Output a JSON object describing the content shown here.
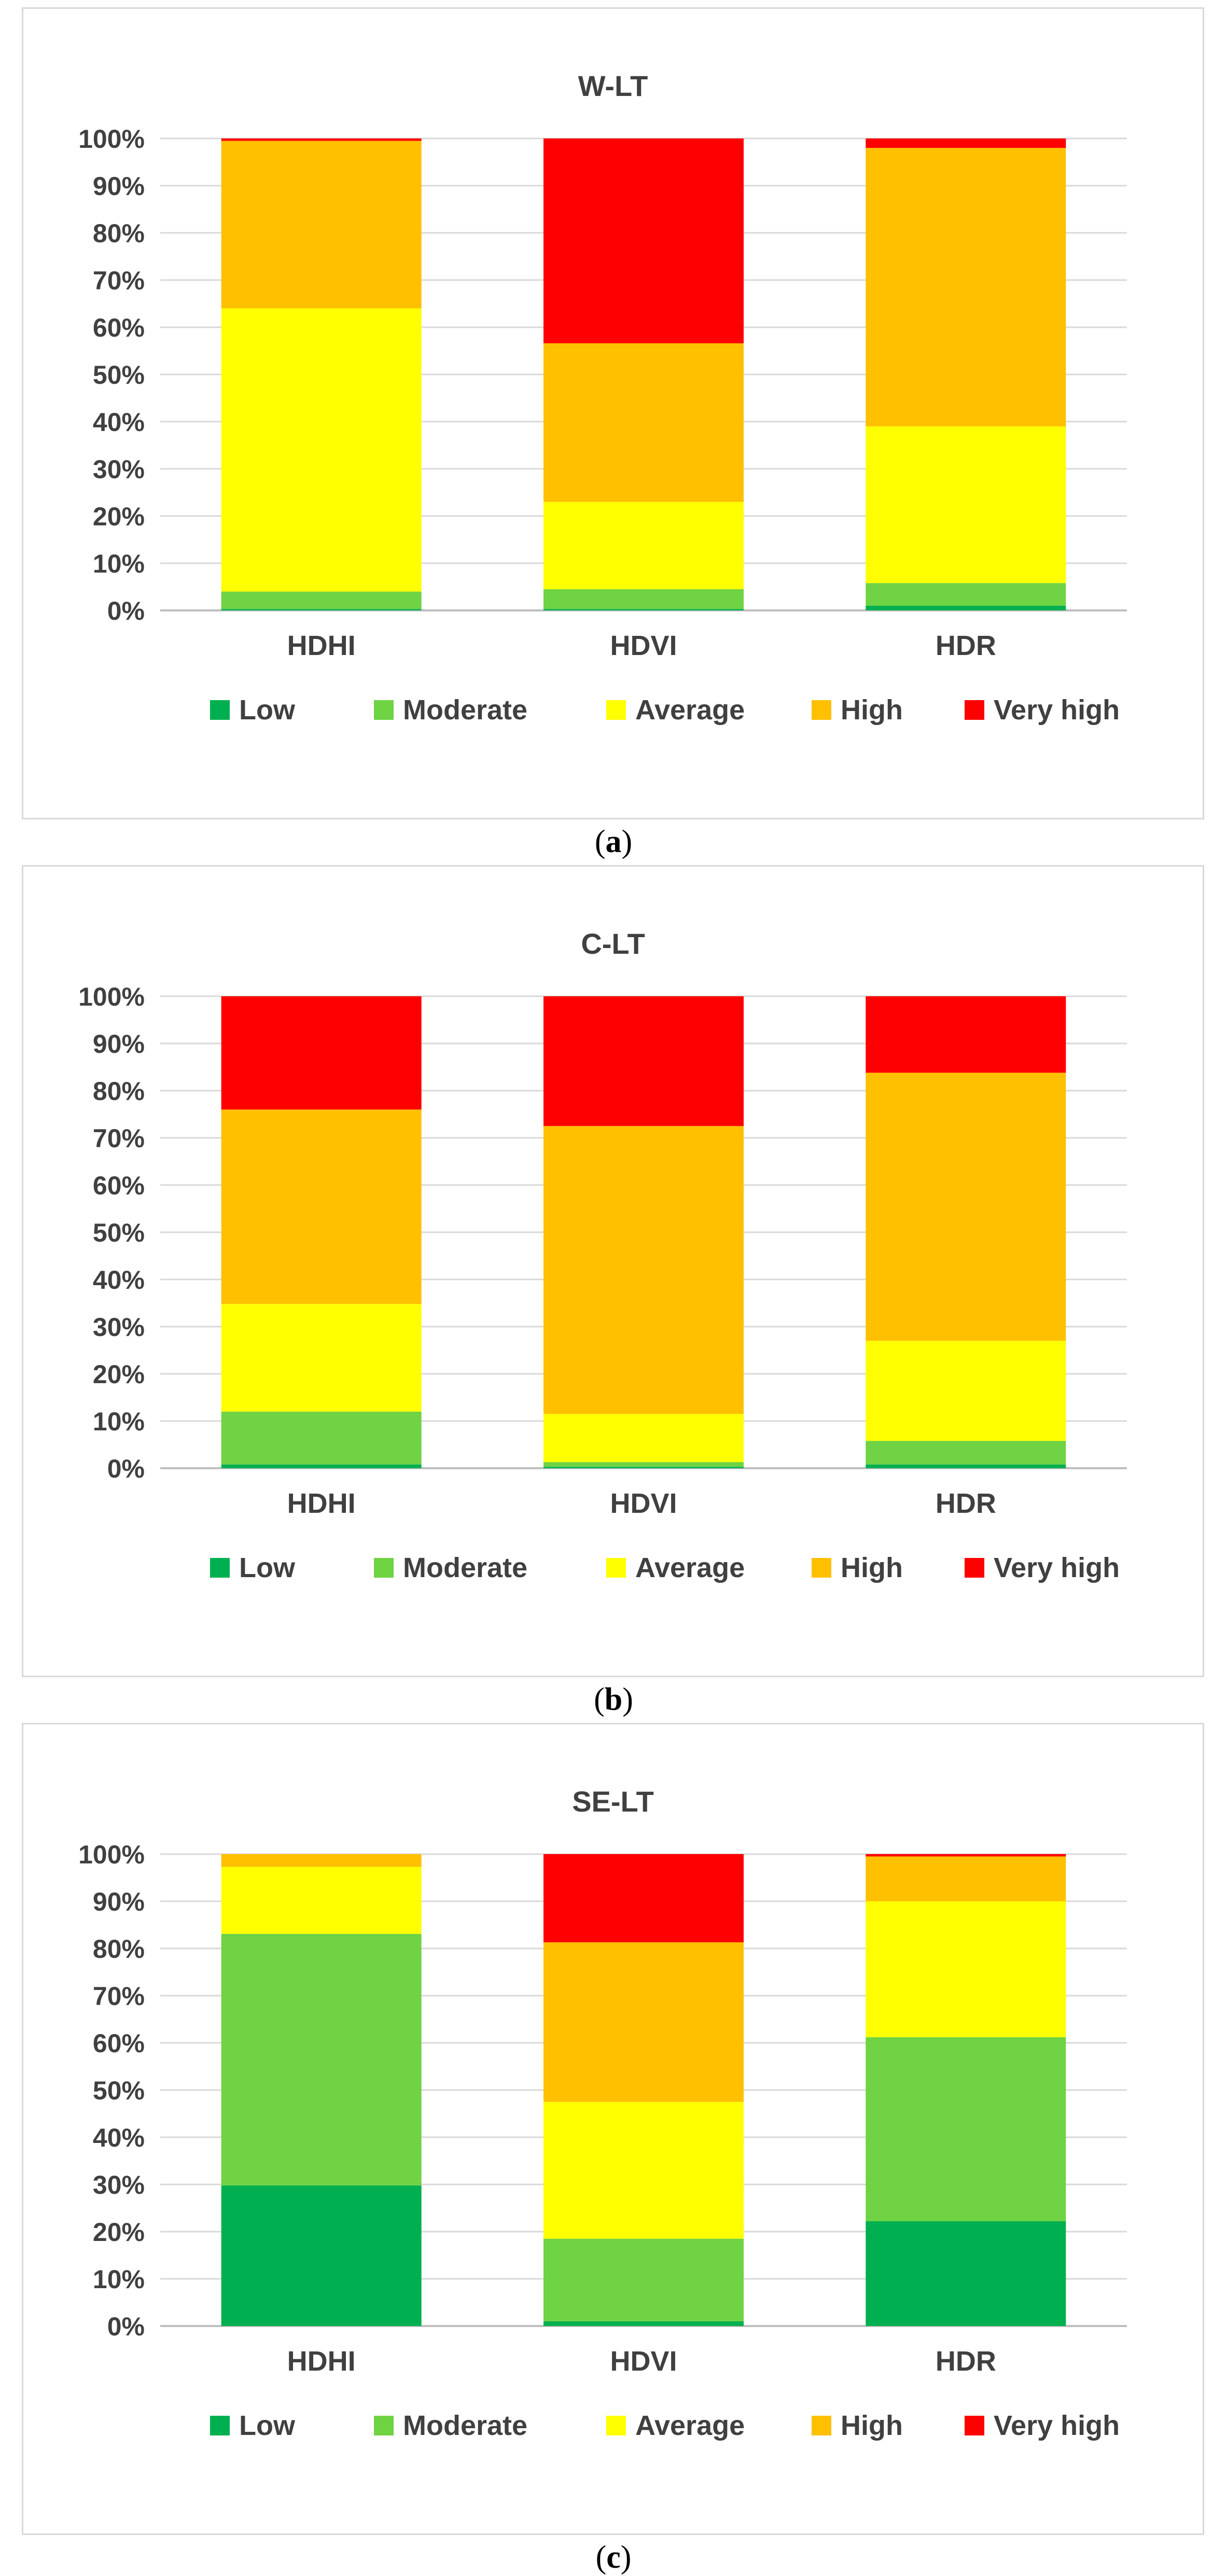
{
  "legend": [
    {
      "name": "Low",
      "color": "#00b050"
    },
    {
      "name": "Moderate",
      "color": "#6fd343"
    },
    {
      "name": "Average",
      "color": "#ffff00"
    },
    {
      "name": "High",
      "color": "#ffc000"
    },
    {
      "name": "Very high",
      "color": "#ff0000"
    }
  ],
  "captions": [
    {
      "open": "(",
      "letter": "a",
      "close": ")"
    },
    {
      "open": "(",
      "letter": "b",
      "close": ")"
    },
    {
      "open": "(",
      "letter": "c",
      "close": ")"
    }
  ],
  "chart_data": [
    {
      "type": "bar",
      "stacked": true,
      "title": "W-LT",
      "categories": [
        "HDHI",
        "HDVI",
        "HDR"
      ],
      "ylim": [
        0,
        100
      ],
      "yticks": [
        "0%",
        "10%",
        "20%",
        "30%",
        "40%",
        "50%",
        "60%",
        "70%",
        "80%",
        "90%",
        "100%"
      ],
      "grid": true,
      "legend_position": "bottom",
      "series": [
        {
          "name": "Low",
          "values": [
            0.3,
            0.3,
            1.0
          ]
        },
        {
          "name": "Moderate",
          "values": [
            3.7,
            4.2,
            4.8
          ]
        },
        {
          "name": "Average",
          "values": [
            60.0,
            18.5,
            33.2
          ]
        },
        {
          "name": "High",
          "values": [
            35.5,
            33.6,
            59.0
          ]
        },
        {
          "name": "Very high",
          "values": [
            0.5,
            43.4,
            2.0
          ]
        }
      ]
    },
    {
      "type": "bar",
      "stacked": true,
      "title": "C-LT",
      "categories": [
        "HDHI",
        "HDVI",
        "HDR"
      ],
      "ylim": [
        0,
        100
      ],
      "yticks": [
        "0%",
        "10%",
        "20%",
        "30%",
        "40%",
        "50%",
        "60%",
        "70%",
        "80%",
        "90%",
        "100%"
      ],
      "grid": true,
      "legend_position": "bottom",
      "series": [
        {
          "name": "Low",
          "values": [
            0.8,
            0.3,
            0.8
          ]
        },
        {
          "name": "Moderate",
          "values": [
            11.2,
            1.0,
            5.0
          ]
        },
        {
          "name": "Average",
          "values": [
            22.8,
            10.2,
            21.2
          ]
        },
        {
          "name": "High",
          "values": [
            41.2,
            61.0,
            56.8
          ]
        },
        {
          "name": "Very high",
          "values": [
            24.0,
            27.5,
            16.2
          ]
        }
      ]
    },
    {
      "type": "bar",
      "stacked": true,
      "title": "SE-LT",
      "categories": [
        "HDHI",
        "HDVI",
        "HDR"
      ],
      "ylim": [
        0,
        100
      ],
      "yticks": [
        "0%",
        "10%",
        "20%",
        "30%",
        "40%",
        "50%",
        "60%",
        "70%",
        "80%",
        "90%",
        "100%"
      ],
      "grid": true,
      "legend_position": "bottom",
      "series": [
        {
          "name": "Low",
          "values": [
            29.8,
            1.0,
            22.2
          ]
        },
        {
          "name": "Moderate",
          "values": [
            53.3,
            17.5,
            39.0
          ]
        },
        {
          "name": "Average",
          "values": [
            14.2,
            29.0,
            28.8
          ]
        },
        {
          "name": "High",
          "values": [
            2.7,
            33.8,
            9.5
          ]
        },
        {
          "name": "Very high",
          "values": [
            0.0,
            18.7,
            0.5
          ]
        }
      ]
    }
  ]
}
